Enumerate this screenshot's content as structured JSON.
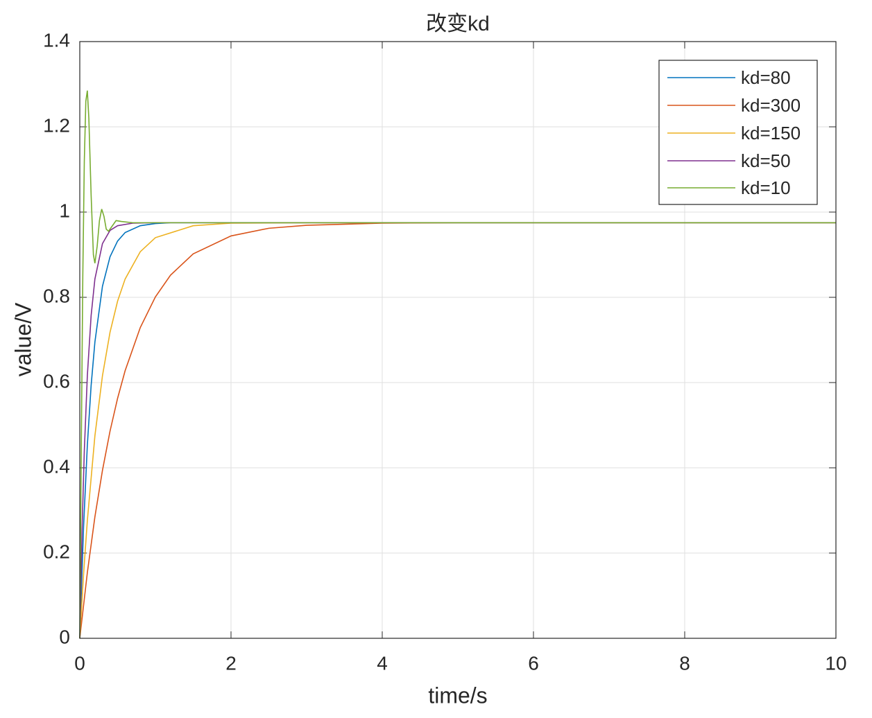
{
  "chart_data": {
    "type": "line",
    "title": "改变kd",
    "xlabel": "time/s",
    "ylabel": "value/V",
    "xlim": [
      0,
      10
    ],
    "xticks": [
      0,
      2,
      4,
      6,
      8,
      10
    ],
    "ylim": [
      0,
      1.4
    ],
    "yticks": [
      0,
      0.2,
      0.4,
      0.6,
      0.8,
      1,
      1.2,
      1.4
    ],
    "grid": true,
    "legend": "top-right",
    "series": [
      {
        "name": "kd=80",
        "color": "#0072BD",
        "x": [
          0,
          0.05,
          0.1,
          0.15,
          0.2,
          0.3,
          0.4,
          0.5,
          0.6,
          0.8,
          1,
          1.2,
          10
        ],
        "values": [
          0,
          0.261,
          0.453,
          0.593,
          0.695,
          0.826,
          0.895,
          0.932,
          0.952,
          0.968,
          0.973,
          0.975,
          0.975
        ]
      },
      {
        "name": "kd=300",
        "color": "#D95319",
        "x": [
          0,
          0.1,
          0.2,
          0.3,
          0.4,
          0.5,
          0.6,
          0.8,
          1,
          1.2,
          1.5,
          2,
          2.5,
          3,
          4,
          5,
          10
        ],
        "values": [
          0,
          0.154,
          0.285,
          0.394,
          0.486,
          0.563,
          0.628,
          0.729,
          0.801,
          0.852,
          0.902,
          0.944,
          0.962,
          0.969,
          0.974,
          0.975,
          0.975
        ]
      },
      {
        "name": "kd=150",
        "color": "#EDB120",
        "x": [
          0,
          0.05,
          0.1,
          0.2,
          0.3,
          0.4,
          0.5,
          0.6,
          0.8,
          1,
          1.5,
          2,
          3,
          10
        ],
        "values": [
          0,
          0.15,
          0.276,
          0.475,
          0.616,
          0.718,
          0.791,
          0.843,
          0.907,
          0.94,
          0.968,
          0.974,
          0.975,
          0.975
        ]
      },
      {
        "name": "kd=50",
        "color": "#7E2F8E",
        "x": [
          0,
          0.03,
          0.06,
          0.1,
          0.15,
          0.2,
          0.3,
          0.4,
          0.5,
          0.7,
          1,
          10
        ],
        "values": [
          0,
          0.253,
          0.44,
          0.616,
          0.757,
          0.843,
          0.926,
          0.957,
          0.968,
          0.974,
          0.975,
          0.975
        ]
      },
      {
        "name": "kd=10",
        "color": "#77AC30",
        "x": [
          0,
          0.02,
          0.04,
          0.06,
          0.08,
          0.1,
          0.12,
          0.15,
          0.18,
          0.2,
          0.23,
          0.26,
          0.29,
          0.32,
          0.35,
          0.38,
          0.42,
          0.48,
          0.55,
          0.7,
          10
        ],
        "values": [
          0,
          0.45,
          0.85,
          1.12,
          1.26,
          1.285,
          1.22,
          1.04,
          0.9,
          0.88,
          0.92,
          0.98,
          1.007,
          0.99,
          0.96,
          0.955,
          0.965,
          0.98,
          0.978,
          0.975,
          0.975
        ]
      }
    ]
  }
}
